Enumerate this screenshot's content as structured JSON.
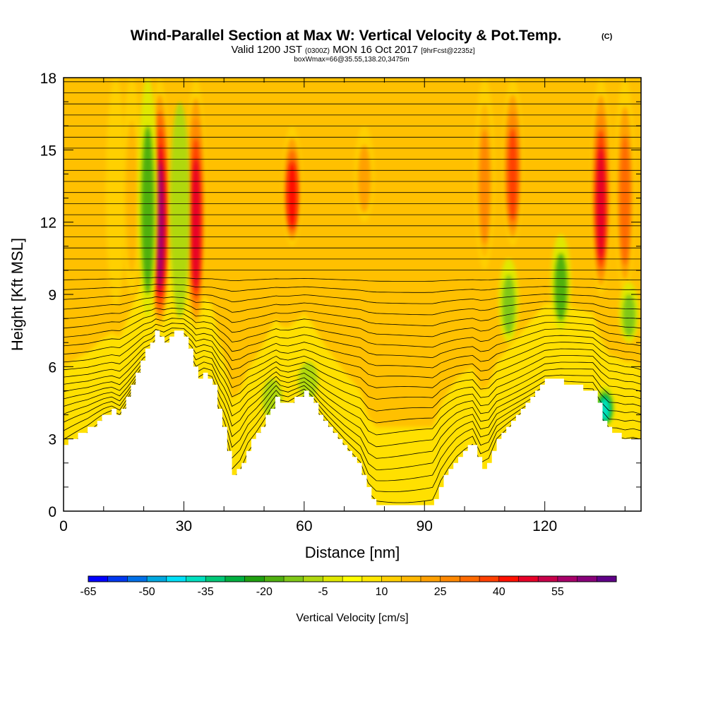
{
  "header": {
    "title": "Wind-Parallel Section at Max W: Vertical Velocity & Pot.Temp.",
    "title_mark": "(C)",
    "valid_prefix": "Valid 1200 JST",
    "valid_utc": "(0300Z)",
    "valid_date": "MON 16 Oct 2017",
    "forecast": "[9hrFcst@2235z]",
    "box_info": "boxWmax=66@35.55,138.20,3475m"
  },
  "chart_data": {
    "type": "heatmap",
    "xlabel": "Distance [nm]",
    "ylabel": "Height [Kft MSL]",
    "xlim": [
      0,
      144
    ],
    "ylim": [
      0,
      18
    ],
    "x_ticks": [
      0,
      30,
      60,
      90,
      120
    ],
    "y_ticks": [
      0,
      3,
      6,
      9,
      12,
      15,
      18
    ],
    "x_minor_step": 10,
    "y_minor_step": 1,
    "colorbar": {
      "label": "Vertical Velocity [cm/s]",
      "tick_labels": [
        "-65",
        "-50",
        "-35",
        "-20",
        "-5",
        "10",
        "25",
        "40",
        "55"
      ],
      "levels": [
        -65,
        -60,
        -55,
        -50,
        -45,
        -40,
        -35,
        -30,
        -25,
        -20,
        -15,
        -10,
        -5,
        0,
        5,
        10,
        15,
        20,
        25,
        30,
        35,
        40,
        45,
        50,
        55,
        60,
        65
      ],
      "colors": [
        "#0000ff",
        "#0038f0",
        "#0070e8",
        "#00a8e0",
        "#00e0f8",
        "#00e0c0",
        "#00c878",
        "#00b040",
        "#20a010",
        "#50b010",
        "#80c818",
        "#b0d810",
        "#e0e800",
        "#ffff00",
        "#ffe800",
        "#ffd000",
        "#ffb800",
        "#ffa000",
        "#ff8800",
        "#ff6a00",
        "#ff4000",
        "#ff1000",
        "#e80028",
        "#c8004a",
        "#a8006a",
        "#88007a",
        "#600088"
      ]
    },
    "terrain_kft": {
      "x": [
        0,
        2,
        6,
        10,
        12,
        14,
        16,
        20,
        22,
        23,
        25,
        27,
        30,
        32,
        33,
        35,
        37,
        39,
        40,
        41,
        42,
        44,
        46,
        48,
        50,
        52,
        53,
        54,
        56,
        58,
        60,
        62,
        64,
        66,
        70,
        74,
        76,
        78,
        80,
        84,
        88,
        92,
        93,
        94,
        96,
        98,
        100,
        102,
        104,
        106,
        108,
        112,
        116,
        120,
        124,
        128,
        132,
        134,
        136,
        138,
        140,
        142,
        144
      ],
      "y": [
        2.8,
        3.0,
        3.4,
        4.0,
        4.2,
        4.0,
        4.8,
        6.6,
        7.0,
        7.5,
        7.0,
        7.5,
        7.3,
        6.2,
        5.4,
        5.7,
        5.4,
        3.8,
        3.2,
        2.4,
        1.4,
        1.8,
        2.7,
        3.2,
        3.8,
        4.5,
        4.8,
        4.5,
        4.4,
        4.7,
        5.0,
        4.6,
        4.0,
        3.5,
        2.6,
        1.8,
        0.7,
        0.3,
        0.3,
        0.3,
        0.3,
        0.3,
        0.7,
        1.2,
        1.8,
        2.3,
        2.6,
        2.8,
        1.8,
        2.0,
        3.0,
        3.8,
        4.6,
        5.4,
        5.4,
        5.2,
        5.0,
        4.0,
        3.3,
        3.2,
        3.0,
        3.0,
        2.8
      ]
    },
    "updrafts": [
      {
        "x": 13,
        "y0": 8.5,
        "y1": 18,
        "w": 10
      },
      {
        "x": 17,
        "y0": 9.0,
        "y1": 18,
        "w": 15
      },
      {
        "x": 24,
        "y0": 7.5,
        "y1": 18,
        "w": 55
      },
      {
        "x": 33,
        "y0": 7.5,
        "y1": 18,
        "w": 45
      },
      {
        "x": 57,
        "y0": 11.0,
        "y1": 16,
        "w": 40
      },
      {
        "x": 75,
        "y0": 12.0,
        "y1": 16,
        "w": 20
      },
      {
        "x": 105,
        "y0": 10.0,
        "y1": 18,
        "w": 25
      },
      {
        "x": 112,
        "y0": 11.0,
        "y1": 18,
        "w": 35
      },
      {
        "x": 134,
        "y0": 9.0,
        "y1": 18,
        "w": 45
      },
      {
        "x": 140,
        "y0": 9.0,
        "y1": 18,
        "w": 30
      }
    ],
    "downdrafts": [
      {
        "x": 21,
        "y0": 8.0,
        "y1": 18,
        "w": -22
      },
      {
        "x": 29,
        "y0": 8.0,
        "y1": 17,
        "w": -10
      },
      {
        "x": 52,
        "y0": 3.8,
        "y1": 5.5,
        "w": -10
      },
      {
        "x": 61,
        "y0": 4.6,
        "y1": 6.2,
        "w": -10
      },
      {
        "x": 111,
        "y0": 7.0,
        "y1": 10.5,
        "w": -15
      },
      {
        "x": 124,
        "y0": 7.5,
        "y1": 11.5,
        "w": -22
      },
      {
        "x": 135,
        "y0": 3.5,
        "y1": 5.2,
        "w": -40
      },
      {
        "x": 141,
        "y0": 7.0,
        "y1": 9.5,
        "w": -15
      }
    ]
  }
}
